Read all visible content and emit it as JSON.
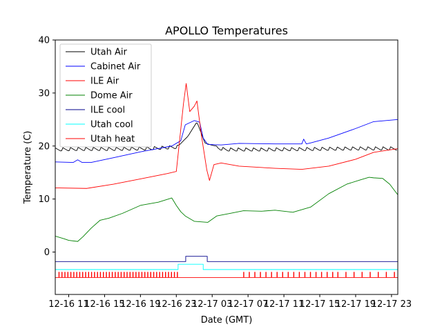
{
  "chart_data": {
    "type": "line",
    "title": "APOLLO Temperatures",
    "xlabel": "Date (GMT)",
    "ylabel": "Temperature (C)",
    "xlim": [
      9.5,
      47.7
    ],
    "ylim": [
      -8,
      40
    ],
    "yticks": [
      0,
      10,
      20,
      30,
      40
    ],
    "ytick_labels": [
      "0",
      "10",
      "20",
      "30",
      "40"
    ],
    "xticks": [
      11,
      15,
      19,
      23,
      27,
      31,
      35,
      39,
      43,
      47
    ],
    "xtick_labels": [
      "12-16 11",
      "12-16 15",
      "12-16 19",
      "12-16 23",
      "12-17 03",
      "12-17 07",
      "12-17 11",
      "12-17 15",
      "12-17 19",
      "12-17 23"
    ],
    "legend_position": "top-left",
    "series": [
      {
        "name": "Utah Air",
        "color": "#000000",
        "sawtooth": [
          0.85,
          0.7
        ],
        "x": [
          9.5,
          12,
          16,
          20,
          23.3,
          24.3,
          25.3,
          26.2,
          27,
          28.5,
          33,
          38,
          43,
          47.7
        ],
        "y": [
          19.3,
          19.4,
          19.4,
          19.5,
          19.8,
          21.5,
          24.2,
          20.2,
          19.8,
          19.3,
          19.3,
          19.4,
          19.5,
          19.5
        ]
      },
      {
        "name": "Cabinet Air",
        "color": "#0000ff",
        "x": [
          9.5,
          11.5,
          12,
          12.5,
          13.5,
          16,
          19,
          22.5,
          23.5,
          24,
          25,
          25.6,
          26,
          26.5,
          28,
          30,
          34,
          37,
          37.2,
          37.5,
          38,
          40,
          43,
          45,
          47.7
        ],
        "y": [
          17.0,
          16.9,
          17.4,
          16.9,
          16.9,
          17.8,
          18.9,
          20.0,
          21.0,
          24.0,
          24.8,
          24.5,
          21.5,
          20.3,
          20.2,
          20.5,
          20.4,
          20.4,
          21.3,
          20.4,
          20.6,
          21.5,
          23.3,
          24.6,
          25.0
        ]
      },
      {
        "name": "ILE Air",
        "color": "#ff0000",
        "x": [
          9.5,
          13,
          16,
          19,
          22,
          23,
          23.3,
          23.8,
          24.1,
          24.5,
          25,
          25.3,
          25.8,
          26.4,
          26.7,
          27.2,
          28,
          30,
          34,
          37,
          40,
          43,
          45,
          47.7
        ],
        "y": [
          12.1,
          12.0,
          12.8,
          13.8,
          14.8,
          15.2,
          20.0,
          28.0,
          31.8,
          26.5,
          27.5,
          28.5,
          22.0,
          15.5,
          13.5,
          16.5,
          16.8,
          16.2,
          15.8,
          15.6,
          16.2,
          17.5,
          18.8,
          19.5
        ]
      },
      {
        "name": "Dome Air",
        "color": "#008000",
        "x": [
          9.5,
          10.5,
          11,
          12,
          12.6,
          13.5,
          14.5,
          15.5,
          17,
          19,
          21,
          22.5,
          23,
          23.5,
          24,
          25,
          26.5,
          27.5,
          29,
          30.5,
          32.5,
          34,
          36,
          38,
          40,
          42,
          43.5,
          44.5,
          45,
          46,
          46.8,
          47.7
        ],
        "y": [
          3.0,
          2.5,
          2.2,
          2.0,
          2.9,
          4.5,
          6.0,
          6.4,
          7.3,
          8.8,
          9.4,
          10.2,
          8.8,
          7.6,
          6.8,
          5.8,
          5.6,
          6.8,
          7.3,
          7.8,
          7.7,
          7.9,
          7.5,
          8.5,
          11.0,
          12.8,
          13.6,
          14.1,
          14.0,
          13.9,
          12.8,
          10.8
        ]
      },
      {
        "name": "ILE cool",
        "color": "#00008b",
        "x": [
          9.5,
          24.05,
          24.05,
          26.45,
          26.45,
          47.7
        ],
        "y": [
          -1.8,
          -1.8,
          -0.8,
          -0.8,
          -1.8,
          -1.8
        ]
      },
      {
        "name": "Utah cool",
        "color": "#00ffff",
        "x": [
          9.5,
          23.2,
          23.2,
          26.0,
          26.0,
          27.0,
          27.0,
          47.7
        ],
        "y": [
          -3.3,
          -3.3,
          -2.3,
          -2.3,
          -3.3,
          -3.3,
          -3.3,
          -3.3
        ]
      },
      {
        "name": "Utah heat",
        "color": "#ff0000",
        "pulses": {
          "base": -4.8,
          "top": -3.8,
          "bands": [
            [
              9.9,
              23.2,
              0.33
            ],
            [
              30.5,
              40.5,
              0.62
            ],
            [
              41,
              47.7,
              0.9
            ]
          ]
        },
        "x": [
          9.5,
          47.7
        ],
        "y": [
          -4.8,
          -4.8
        ]
      }
    ]
  }
}
